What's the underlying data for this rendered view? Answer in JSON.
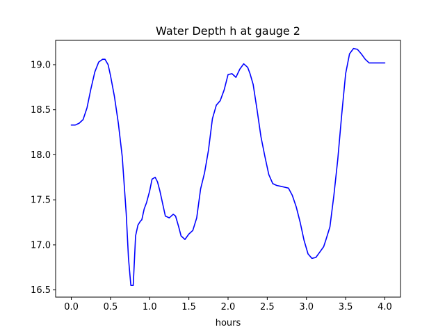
{
  "chart_data": {
    "type": "line",
    "title": "Water Depth h at gauge 2",
    "xlabel": "hours",
    "ylabel": "",
    "xlim": [
      -0.2,
      4.2
    ],
    "ylim": [
      16.42,
      19.27
    ],
    "xticks": [
      0.0,
      0.5,
      1.0,
      1.5,
      2.0,
      2.5,
      3.0,
      3.5,
      4.0
    ],
    "xtick_labels": [
      "0.0",
      "0.5",
      "1.0",
      "1.5",
      "2.0",
      "2.5",
      "3.0",
      "3.5",
      "4.0"
    ],
    "yticks": [
      16.5,
      17.0,
      17.5,
      18.0,
      18.5,
      19.0
    ],
    "ytick_labels": [
      "16.5",
      "17.0",
      "17.5",
      "18.0",
      "18.5",
      "19.0"
    ],
    "grid": false,
    "colors": {
      "line": "#0000ff",
      "axes": "#000000",
      "background": "#ffffff"
    },
    "series": [
      {
        "x": [
          0.0,
          0.05,
          0.1,
          0.15,
          0.2,
          0.25,
          0.3,
          0.35,
          0.4,
          0.43,
          0.47,
          0.5,
          0.55,
          0.6,
          0.65,
          0.7,
          0.73,
          0.76,
          0.79,
          0.82,
          0.85,
          0.88,
          0.9,
          0.93,
          0.96,
          1.0,
          1.03,
          1.07,
          1.1,
          1.13,
          1.16,
          1.2,
          1.25,
          1.3,
          1.33,
          1.37,
          1.4,
          1.45,
          1.5,
          1.55,
          1.6,
          1.65,
          1.7,
          1.75,
          1.8,
          1.85,
          1.9,
          1.95,
          2.0,
          2.05,
          2.1,
          2.15,
          2.2,
          2.25,
          2.28,
          2.32,
          2.37,
          2.42,
          2.47,
          2.52,
          2.57,
          2.62,
          2.67,
          2.72,
          2.77,
          2.82,
          2.87,
          2.92,
          2.97,
          3.02,
          3.07,
          3.12,
          3.17,
          3.22,
          3.25,
          3.3,
          3.35,
          3.4,
          3.45,
          3.5,
          3.55,
          3.6,
          3.65,
          3.7,
          3.75,
          3.8,
          3.85,
          3.88,
          3.92,
          3.96,
          4.0
        ],
        "y": [
          18.33,
          18.33,
          18.35,
          18.39,
          18.52,
          18.73,
          18.92,
          19.03,
          19.06,
          19.06,
          19.0,
          18.88,
          18.65,
          18.35,
          17.98,
          17.35,
          16.85,
          16.55,
          16.55,
          17.1,
          17.22,
          17.26,
          17.28,
          17.4,
          17.47,
          17.6,
          17.73,
          17.75,
          17.7,
          17.6,
          17.48,
          17.32,
          17.3,
          17.34,
          17.32,
          17.2,
          17.1,
          17.06,
          17.12,
          17.16,
          17.3,
          17.62,
          17.8,
          18.05,
          18.4,
          18.55,
          18.6,
          18.72,
          18.89,
          18.9,
          18.86,
          18.95,
          19.01,
          18.97,
          18.9,
          18.78,
          18.5,
          18.2,
          17.98,
          17.78,
          17.68,
          17.66,
          17.65,
          17.64,
          17.63,
          17.55,
          17.42,
          17.25,
          17.05,
          16.9,
          16.85,
          16.86,
          16.92,
          16.98,
          17.06,
          17.2,
          17.55,
          17.95,
          18.45,
          18.9,
          19.12,
          19.18,
          19.17,
          19.12,
          19.06,
          19.02,
          19.02,
          19.02,
          19.02,
          19.02,
          19.02
        ]
      }
    ]
  }
}
